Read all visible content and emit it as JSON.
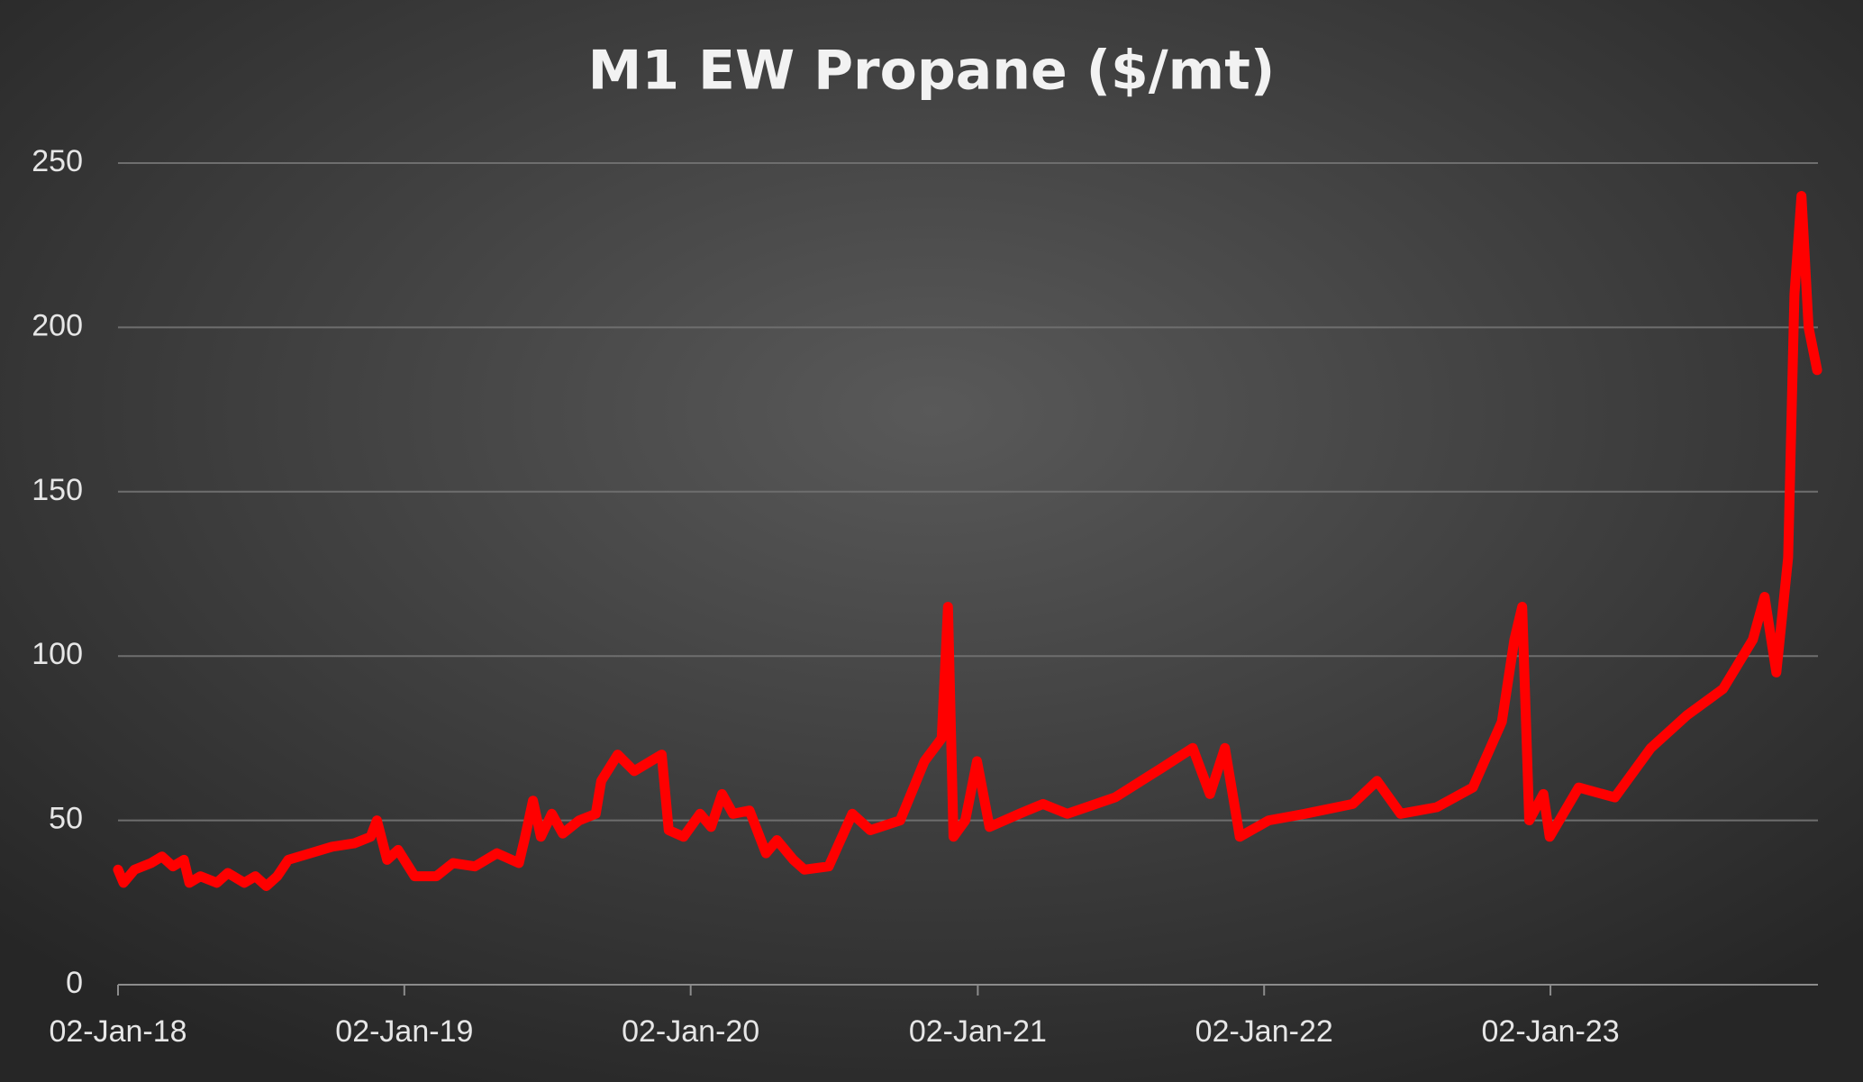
{
  "chart_data": {
    "type": "line",
    "title": "M1 EW Propane ($/mt)",
    "x": [
      "2018-01-02",
      "2018-01-09",
      "2018-01-23",
      "2018-02-13",
      "2018-02-27",
      "2018-03-13",
      "2018-03-27",
      "2018-04-03",
      "2018-04-17",
      "2018-05-08",
      "2018-05-22",
      "2018-06-12",
      "2018-06-26",
      "2018-07-10",
      "2018-07-24",
      "2018-08-07",
      "2018-09-04",
      "2018-10-02",
      "2018-10-30",
      "2018-11-20",
      "2018-11-28",
      "2018-12-11",
      "2018-12-25",
      "2019-01-15",
      "2019-02-12",
      "2019-03-05",
      "2019-04-02",
      "2019-04-30",
      "2019-05-28",
      "2019-06-04",
      "2019-06-15",
      "2019-06-25",
      "2019-07-09",
      "2019-07-23",
      "2019-08-13",
      "2019-09-03",
      "2019-09-10",
      "2019-10-01",
      "2019-10-22",
      "2019-11-12",
      "2019-11-26",
      "2019-12-05",
      "2019-12-24",
      "2020-01-14",
      "2020-01-28",
      "2020-02-11",
      "2020-02-25",
      "2020-03-17",
      "2020-04-07",
      "2020-04-21",
      "2020-05-12",
      "2020-05-26",
      "2020-06-26",
      "2020-07-26",
      "2020-08-18",
      "2020-09-25",
      "2020-10-26",
      "2020-11-17",
      "2020-11-25",
      "2020-12-02",
      "2020-12-17",
      "2021-01-01",
      "2021-01-17",
      "2021-02-24",
      "2021-03-26",
      "2021-04-26",
      "2021-06-26",
      "2021-08-25",
      "2021-10-03",
      "2021-10-25",
      "2021-11-13",
      "2021-12-02",
      "2022-01-08",
      "2022-02-23",
      "2022-04-25",
      "2022-05-26",
      "2022-06-25",
      "2022-08-10",
      "2022-09-25",
      "2022-11-01",
      "2022-11-17",
      "2022-11-27",
      "2022-12-06",
      "2022-12-24",
      "2023-01-01",
      "2023-02-07",
      "2023-03-25",
      "2023-05-10",
      "2023-06-25",
      "2023-08-10",
      "2023-09-17",
      "2023-10-02",
      "2023-10-17",
      "2023-11-01",
      "2023-11-09",
      "2023-11-18",
      "2023-11-27",
      "2023-12-08"
    ],
    "series": [
      {
        "name": "M1 EW Propane",
        "color": "#ff0000",
        "values": [
          35,
          31,
          35,
          37,
          39,
          36,
          38,
          31,
          33,
          31,
          34,
          31,
          33,
          30,
          33,
          38,
          40,
          42,
          43,
          45,
          50,
          38,
          41,
          33,
          33,
          37,
          36,
          40,
          37,
          44,
          56,
          45,
          52,
          46,
          50,
          52,
          62,
          70,
          65,
          68,
          70,
          47,
          45,
          52,
          48,
          58,
          52,
          53,
          40,
          44,
          38,
          35,
          36,
          52,
          47,
          50,
          68,
          75,
          115,
          45,
          50,
          68,
          48,
          52,
          55,
          52,
          57,
          66,
          72,
          58,
          72,
          45,
          50,
          52,
          55,
          62,
          52,
          54,
          60,
          80,
          105,
          115,
          50,
          58,
          45,
          60,
          57,
          72,
          82,
          90,
          105,
          118,
          95,
          130,
          210,
          240,
          200,
          187
        ]
      }
    ],
    "xlim": [
      "2018-01-02",
      "2023-12-09"
    ],
    "xticks": [
      {
        "value": "2018-01-02",
        "label": "02-Jan-18"
      },
      {
        "value": "2019-01-02",
        "label": "02-Jan-19"
      },
      {
        "value": "2020-01-02",
        "label": "02-Jan-20"
      },
      {
        "value": "2021-01-02",
        "label": "02-Jan-21"
      },
      {
        "value": "2022-01-02",
        "label": "02-Jan-22"
      },
      {
        "value": "2023-01-02",
        "label": "02-Jan-23"
      }
    ],
    "ylim": [
      0,
      250
    ],
    "yticks": [
      0,
      50,
      100,
      150,
      200,
      250
    ],
    "grid": true
  }
}
